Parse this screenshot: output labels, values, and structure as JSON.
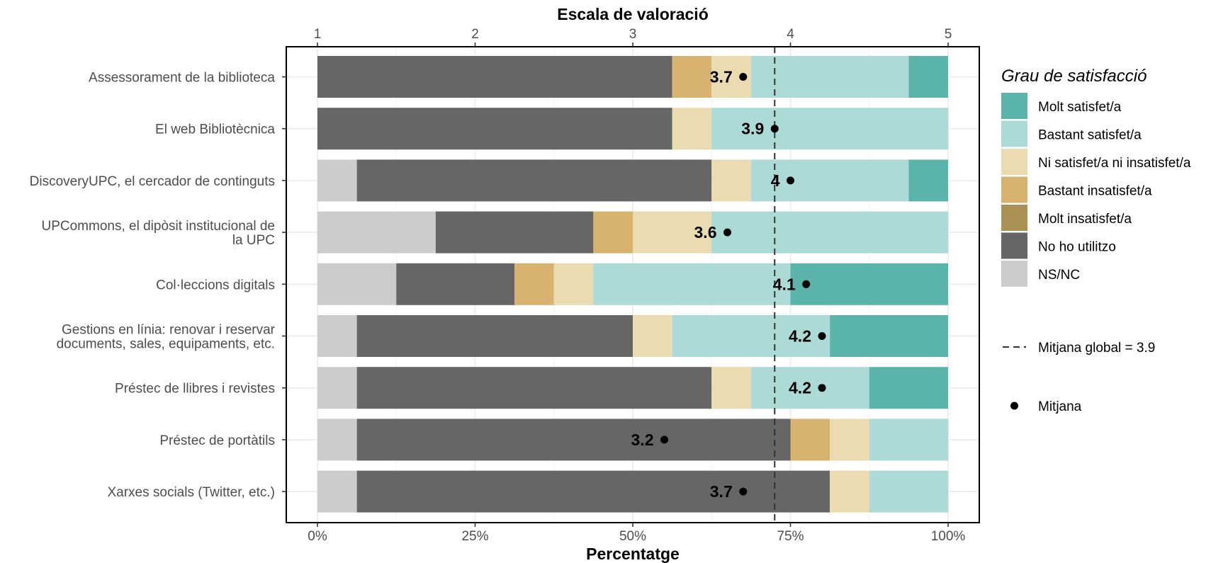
{
  "chart_data": {
    "type": "bar",
    "orientation": "horizontal",
    "stacked": true,
    "title": "",
    "top_axis": {
      "title": "Escala de valoració",
      "ticks": [
        "1",
        "2",
        "3",
        "4",
        "5"
      ],
      "range": [
        1,
        5
      ]
    },
    "bottom_axis": {
      "title": "Percentatge",
      "ticks": [
        "0%",
        "25%",
        "50%",
        "75%",
        "100%"
      ],
      "range": [
        0,
        100
      ]
    },
    "categories": [
      [
        "Assessorament de la biblioteca"
      ],
      [
        "El web Bibliotècnica"
      ],
      [
        "DiscoveryUPC, el cercador de continguts"
      ],
      [
        "UPCommons, el dipòsit institucional de",
        "la UPC"
      ],
      [
        "Col·leccions digitals"
      ],
      [
        "Gestions en línia: renovar i reservar",
        "documents, sales, equipaments, etc."
      ],
      [
        "Préstec de llibres i revistes"
      ],
      [
        "Préstec de portàtils"
      ],
      [
        "Xarxes socials (Twitter, etc.)"
      ]
    ],
    "series": [
      {
        "name": "NS/NC",
        "color": "#cccccc",
        "values": [
          0,
          0,
          6.25,
          18.75,
          12.5,
          6.25,
          6.25,
          6.25,
          6.25
        ]
      },
      {
        "name": "No ho utilitzo",
        "color": "#666666",
        "values": [
          56.25,
          56.25,
          56.25,
          25,
          18.75,
          43.75,
          56.25,
          68.75,
          75
        ]
      },
      {
        "name": "Molt insatisfet/a",
        "color": "#ac9154",
        "values": [
          0,
          0,
          0,
          0,
          0,
          0,
          0,
          0,
          0
        ]
      },
      {
        "name": "Bastant insatisfet/a",
        "color": "#d8b36f",
        "values": [
          6.25,
          0,
          0,
          6.25,
          6.25,
          0,
          0,
          6.25,
          0
        ]
      },
      {
        "name": "Ni satisfet/a ni insatisfet/a",
        "color": "#ebdbb0",
        "values": [
          6.25,
          6.25,
          6.25,
          12.5,
          6.25,
          6.25,
          6.25,
          6.25,
          6.25
        ]
      },
      {
        "name": "Bastant satisfet/a",
        "color": "#acdad6",
        "values": [
          25,
          37.5,
          25,
          37.5,
          31.25,
          25,
          18.75,
          12.5,
          12.5
        ]
      },
      {
        "name": "Molt satisfet/a",
        "color": "#5bb4aa",
        "values": [
          6.25,
          0,
          6.25,
          0,
          25,
          18.75,
          12.5,
          0,
          0
        ]
      }
    ],
    "means": [
      3.7,
      3.9,
      4,
      3.6,
      4.1,
      4.2,
      4.2,
      3.2,
      3.7
    ],
    "mean_labels": [
      "3.7",
      "3.9",
      "4",
      "3.6",
      "4.1",
      "4.2",
      "4.2",
      "3.2",
      "3.7"
    ],
    "global_mean": 3.9,
    "legend": {
      "title": "Grau de satisfacció",
      "placement": "right",
      "items": [
        {
          "label": "Molt satisfet/a",
          "color": "#5bb4aa"
        },
        {
          "label": "Bastant satisfet/a",
          "color": "#acdad6"
        },
        {
          "label": "Ni satisfet/a ni insatisfet/a",
          "color": "#ebdbb0"
        },
        {
          "label": "Bastant insatisfet/a",
          "color": "#d8b36f"
        },
        {
          "label": "Molt insatisfet/a",
          "color": "#ac9154"
        },
        {
          "label": "No ho utilitzo",
          "color": "#666666"
        },
        {
          "label": "NS/NC",
          "color": "#cccccc"
        }
      ],
      "global_mean_label": "Mitjana global =  3.9",
      "mean_label": "Mitjana"
    },
    "grid": true
  }
}
